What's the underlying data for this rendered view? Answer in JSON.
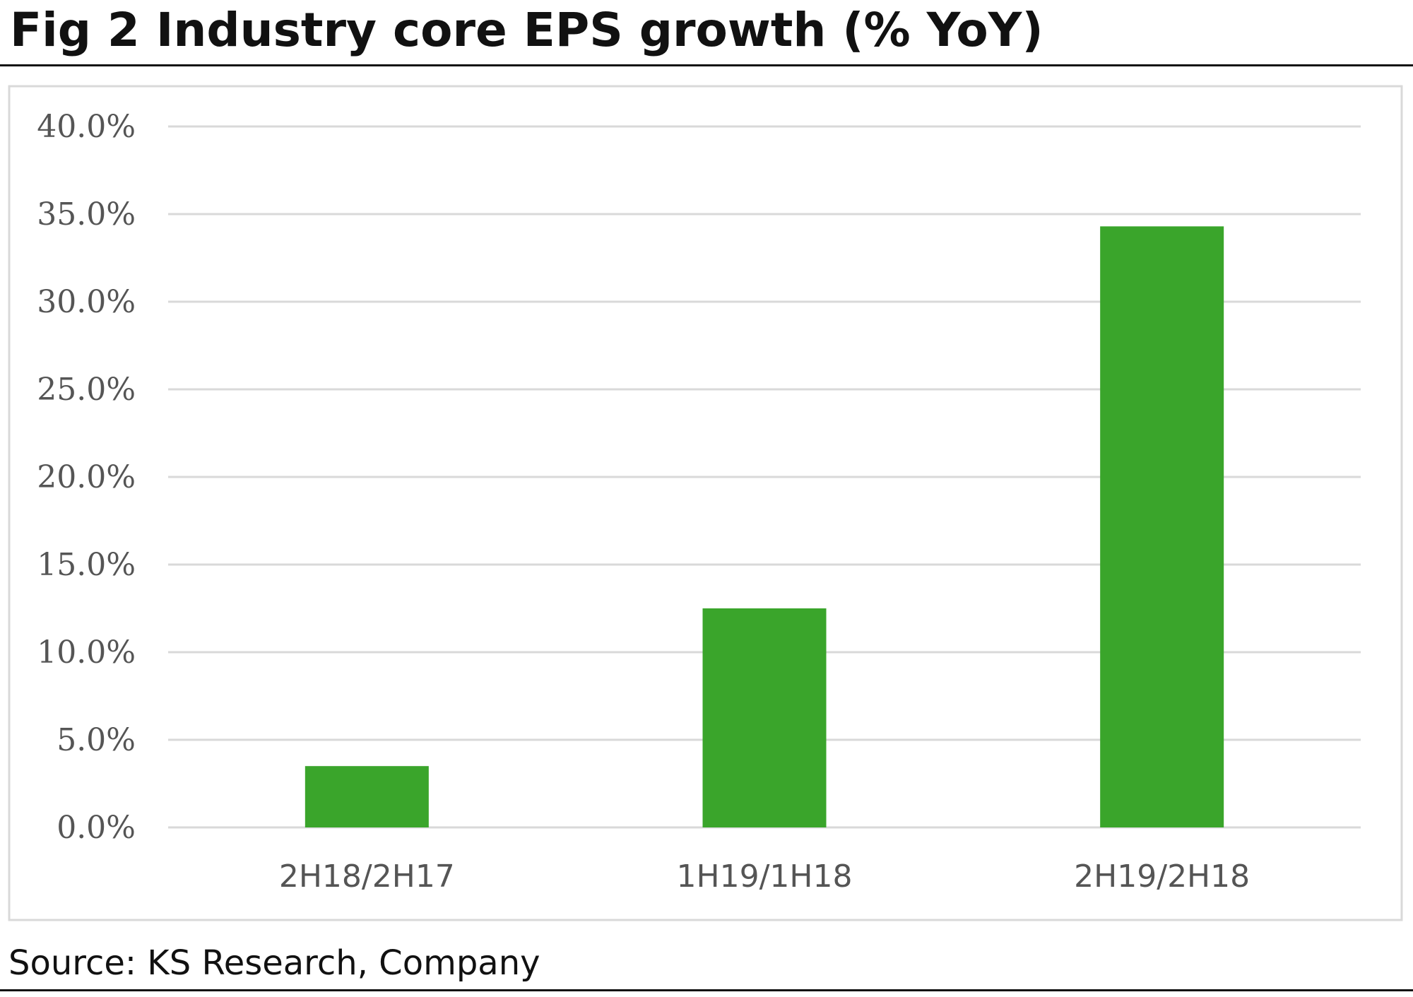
{
  "chart_data": {
    "type": "bar",
    "title": "Fig 2  Industry core EPS growth (% YoY)",
    "categories": [
      "2H18/2H17",
      "1H19/1H18",
      "2H19/2H18"
    ],
    "values": [
      3.5,
      12.5,
      34.3
    ],
    "unit": "%",
    "ylim": [
      0,
      40
    ],
    "yticks": [
      "0.0%",
      "5.0%",
      "10.0%",
      "15.0%",
      "20.0%",
      "25.0%",
      "30.0%",
      "35.0%",
      "40.0%"
    ],
    "ytick_values": [
      0,
      5,
      10,
      15,
      20,
      25,
      30,
      35,
      40
    ],
    "grid": true,
    "legend": "none",
    "bar_color": "#3aa52b",
    "grid_color": "#d9d9d9",
    "source": "Source: KS Research, Company"
  }
}
